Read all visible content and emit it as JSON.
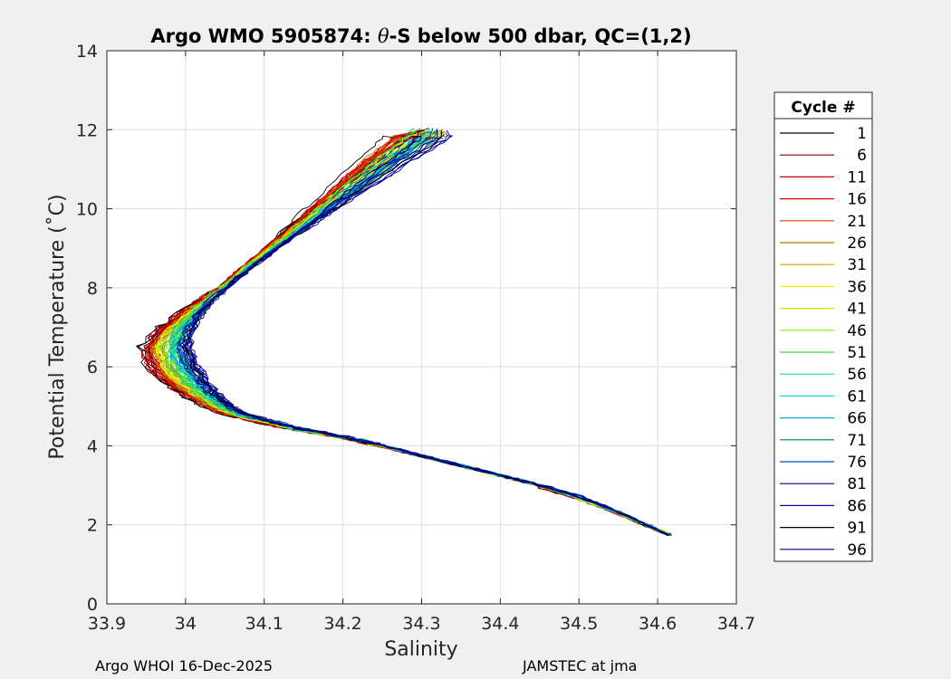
{
  "chart_data": {
    "type": "line",
    "title_prefix": "Argo WMO 5905874: ",
    "title_theta": "θ",
    "title_suffix": "-S below 500 dbar,  QC=(1,2)",
    "xlabel": "Salinity",
    "ylabel": "Potential Temperature (˚C)",
    "xlim": [
      33.9,
      34.7
    ],
    "ylim": [
      0,
      14
    ],
    "xticks": [
      33.9,
      34.0,
      34.1,
      34.2,
      34.3,
      34.4,
      34.5,
      34.6,
      34.7
    ],
    "xtick_labels": [
      "33.9",
      "34",
      "34.1",
      "34.2",
      "34.3",
      "34.4",
      "34.5",
      "34.6",
      "34.7"
    ],
    "yticks": [
      0,
      2,
      4,
      6,
      8,
      10,
      12,
      14
    ],
    "ytick_labels": [
      "0",
      "2",
      "4",
      "6",
      "8",
      "10",
      "12",
      "14"
    ],
    "grid": true,
    "legend_title": "Cycle #",
    "legend_position": "outside-right",
    "series": [
      {
        "name": "1",
        "color": "#000000"
      },
      {
        "name": "6",
        "color": "#800000"
      },
      {
        "name": "11",
        "color": "#c80000"
      },
      {
        "name": "16",
        "color": "#e00000"
      },
      {
        "name": "21",
        "color": "#ee3a00"
      },
      {
        "name": "26",
        "color": "#b07800"
      },
      {
        "name": "31",
        "color": "#c0b000"
      },
      {
        "name": "36",
        "color": "#f0f000"
      },
      {
        "name": "41",
        "color": "#c8f000"
      },
      {
        "name": "46",
        "color": "#80f000"
      },
      {
        "name": "51",
        "color": "#30e040"
      },
      {
        "name": "56",
        "color": "#10e0a0"
      },
      {
        "name": "61",
        "color": "#00e0e0"
      },
      {
        "name": "66",
        "color": "#00b0d8"
      },
      {
        "name": "71",
        "color": "#008070"
      },
      {
        "name": "76",
        "color": "#0050c0"
      },
      {
        "name": "81",
        "color": "#000090"
      },
      {
        "name": "86",
        "color": "#0000c0"
      },
      {
        "name": "91",
        "color": "#000020"
      },
      {
        "name": "96",
        "color": "#000080"
      }
    ],
    "profile_shape": {
      "salinity": [
        34.615,
        34.58,
        34.54,
        34.5,
        34.46,
        34.42,
        34.38,
        34.34,
        34.3,
        34.26,
        34.22,
        34.18,
        34.14,
        34.1,
        34.07,
        34.05,
        34.03,
        34.015,
        34.0,
        33.99,
        34.0,
        34.02,
        34.05,
        34.08,
        34.11,
        34.14,
        34.17,
        34.2,
        34.23,
        34.26,
        34.29,
        34.31
      ],
      "theta": [
        1.75,
        2.05,
        2.4,
        2.7,
        2.95,
        3.15,
        3.35,
        3.55,
        3.75,
        3.95,
        4.15,
        4.3,
        4.45,
        4.65,
        4.8,
        5.0,
        5.3,
        5.6,
        6.0,
        6.5,
        7.0,
        7.5,
        8.0,
        8.5,
        8.95,
        9.4,
        9.85,
        10.3,
        10.75,
        11.2,
        11.6,
        11.9
      ]
    }
  },
  "footer": {
    "left": "Argo WHOI 16-Dec-2025",
    "right": "JAMSTEC at jma"
  }
}
